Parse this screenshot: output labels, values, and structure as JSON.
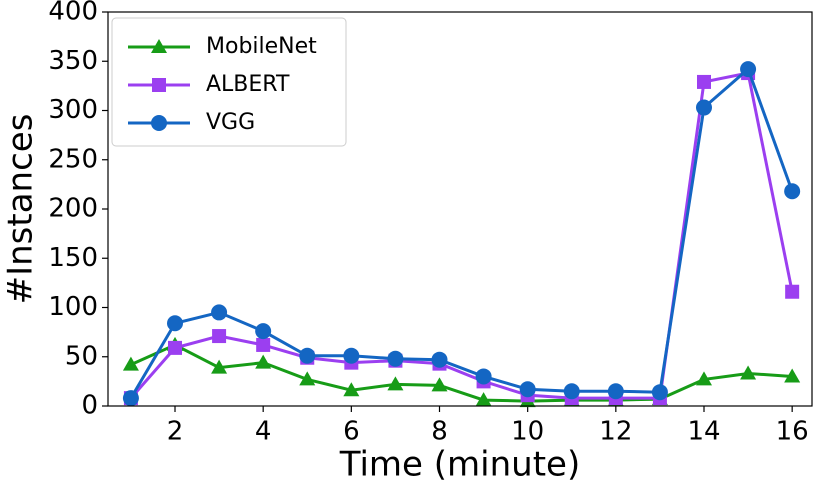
{
  "chart_data": {
    "type": "line",
    "xlabel": "Time (minute)",
    "ylabel": "#Instances",
    "x": [
      1,
      2,
      3,
      4,
      5,
      6,
      7,
      8,
      9,
      10,
      11,
      12,
      13,
      14,
      15,
      16
    ],
    "series": [
      {
        "name": "MobileNet",
        "color": "#179c17",
        "marker": "triangle",
        "values": [
          42,
          62,
          39,
          44,
          27,
          16,
          22,
          21,
          6,
          5,
          6,
          6,
          7,
          27,
          33,
          30
        ]
      },
      {
        "name": "ALBERT",
        "color": "#9b3ff0",
        "marker": "square",
        "values": [
          8,
          59,
          71,
          62,
          49,
          44,
          46,
          43,
          25,
          11,
          8,
          8,
          8,
          329,
          338,
          116
        ]
      },
      {
        "name": "VGG",
        "color": "#1466c3",
        "marker": "circle",
        "values": [
          8,
          84,
          95,
          76,
          51,
          51,
          48,
          47,
          30,
          17,
          15,
          15,
          14,
          303,
          342,
          218
        ]
      }
    ],
    "xlim": [
      0.48,
      16.45
    ],
    "ylim": [
      0,
      400
    ],
    "xticks": [
      2,
      4,
      6,
      8,
      10,
      12,
      14,
      16
    ],
    "yticks": [
      0,
      50,
      100,
      150,
      200,
      250,
      300,
      350,
      400
    ],
    "legend": "upper left"
  }
}
